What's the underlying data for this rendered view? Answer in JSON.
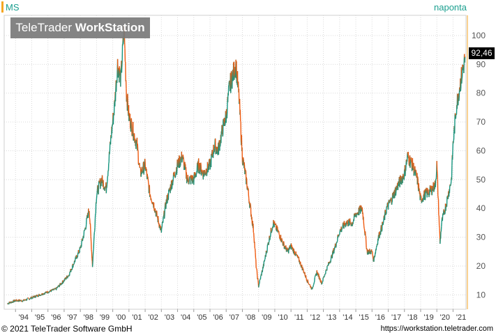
{
  "header": {
    "symbol": "MS",
    "period": "naponta"
  },
  "watermark": {
    "brand_light": "TeleTrader",
    "brand_bold": "WorkStation"
  },
  "footer": {
    "copyright": "© 2021 TeleTrader Software GmbH",
    "url": "https://workstation.teletrader.com"
  },
  "last_price_label": "92,46",
  "colors": {
    "up": "#14957f",
    "down": "#ef5a10",
    "grid": "#d9d9d9",
    "axis_line": "#f5a623"
  },
  "chart_data": {
    "type": "line",
    "title": "MS",
    "series": [
      {
        "name": "MS",
        "x": [
          1993.5,
          1994.0,
          1994.5,
          1995.0,
          1995.5,
          1996.0,
          1996.5,
          1997.0,
          1997.3,
          1997.6,
          1998.0,
          1998.3,
          1998.55,
          1998.75,
          1999.0,
          1999.3,
          1999.6,
          1999.9,
          2000.1,
          2000.3,
          2000.5,
          2000.7,
          2000.85,
          2001.0,
          2001.2,
          2001.5,
          2001.7,
          2002.0,
          2002.3,
          2002.5,
          2002.8,
          2003.0,
          2003.3,
          2003.6,
          2004.0,
          2004.3,
          2004.6,
          2005.0,
          2005.3,
          2005.6,
          2006.0,
          2006.3,
          2006.5,
          2006.8,
          2007.0,
          2007.2,
          2007.4,
          2007.6,
          2007.8,
          2008.0,
          2008.3,
          2008.5,
          2008.7,
          2008.85,
          2009.0,
          2009.3,
          2009.6,
          2009.9,
          2010.2,
          2010.5,
          2010.8,
          2011.0,
          2011.3,
          2011.5,
          2011.8,
          2012.0,
          2012.3,
          2012.6,
          2012.9,
          2013.2,
          2013.5,
          2013.8,
          2014.0,
          2014.4,
          2014.8,
          2015.0,
          2015.4,
          2015.7,
          2016.0,
          2016.1,
          2016.4,
          2016.7,
          2016.9,
          2017.2,
          2017.6,
          2018.0,
          2018.2,
          2018.5,
          2018.8,
          2019.0,
          2019.3,
          2019.6,
          2019.9,
          2020.0,
          2020.2,
          2020.3,
          2020.6,
          2020.9,
          2021.0,
          2021.2,
          2021.4,
          2021.6,
          2021.75
        ],
        "values": [
          7,
          8,
          8,
          9,
          10,
          11,
          12,
          15,
          17,
          21,
          26,
          33,
          40,
          20,
          45,
          50,
          47,
          65,
          75,
          90,
          85,
          102,
          80,
          72,
          68,
          62,
          52,
          55,
          45,
          42,
          36,
          32,
          42,
          48,
          55,
          58,
          50,
          50,
          55,
          52,
          55,
          62,
          60,
          68,
          72,
          82,
          86,
          90,
          78,
          58,
          48,
          40,
          32,
          20,
          13,
          20,
          28,
          35,
          32,
          28,
          25,
          27,
          24,
          22,
          18,
          15,
          12,
          18,
          14,
          19,
          23,
          28,
          32,
          35,
          35,
          38,
          40,
          25,
          25,
          22,
          30,
          35,
          40,
          43,
          48,
          52,
          58,
          55,
          50,
          43,
          45,
          46,
          48,
          55,
          28,
          35,
          42,
          50,
          62,
          75,
          82,
          88,
          92.46
        ],
        "color": "#14957f"
      }
    ],
    "xaxis": {
      "ticks": [
        "'94",
        "'95",
        "'96",
        "'97",
        "'98",
        "'99",
        "'00",
        "'01",
        "'02",
        "'03",
        "'04",
        "'05",
        "'06",
        "'07",
        "'08",
        "'09",
        "'10",
        "'11",
        "'12",
        "'13",
        "'14",
        "'15",
        "'16",
        "'17",
        "'18",
        "'19",
        "'20",
        "'21"
      ],
      "range": [
        1993.3,
        2021.8
      ]
    },
    "yaxis": {
      "ticks": [
        10,
        20,
        30,
        40,
        50,
        60,
        70,
        80,
        90,
        100
      ],
      "range": [
        5,
        107
      ]
    },
    "grid": true,
    "last_value": 92.46
  }
}
